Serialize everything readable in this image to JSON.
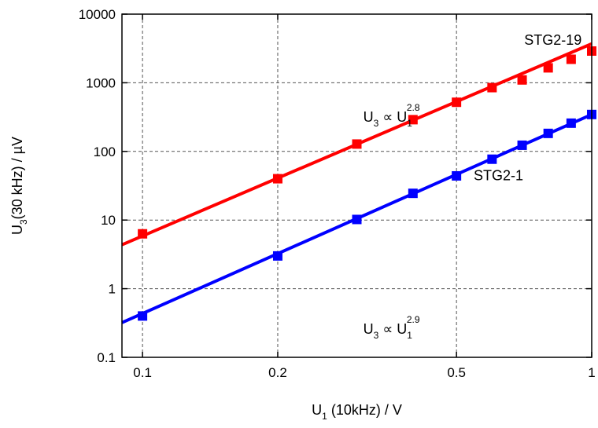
{
  "chart_data": {
    "type": "scatter",
    "x_scale": "log",
    "y_scale": "log",
    "xlim": [
      0.09,
      1.0
    ],
    "ylim": [
      0.1,
      10000
    ],
    "grid": true,
    "legend": "none",
    "x_ticks": [
      0.1,
      0.2,
      0.5,
      1
    ],
    "x_tick_labels": [
      "0.1",
      "0.2",
      "0.5",
      "1"
    ],
    "y_ticks": [
      0.1,
      1,
      10,
      100,
      1000,
      10000
    ],
    "y_tick_labels": [
      "0.1",
      "1",
      "10",
      "100",
      "1000",
      "10000"
    ],
    "xlabel": {
      "pre": "U",
      "sub": "1",
      "post": " (10kHz) / V"
    },
    "ylabel": {
      "pre": "U",
      "sub": "3",
      "post": "(30 kHz) / µV"
    },
    "series": [
      {
        "name": "STG2-19",
        "color": "#ff0000",
        "points": [
          [
            0.1,
            6.3
          ],
          [
            0.2,
            40
          ],
          [
            0.3,
            128
          ],
          [
            0.4,
            290
          ],
          [
            0.5,
            520
          ],
          [
            0.6,
            850
          ],
          [
            0.7,
            1100
          ],
          [
            0.8,
            1650
          ],
          [
            0.9,
            2200
          ],
          [
            1.0,
            2900
          ]
        ],
        "fit": {
          "x_range": [
            0.09,
            1.0
          ],
          "y_at_x1": 3700,
          "exponent": 2.8
        }
      },
      {
        "name": "STG2-1",
        "color": "#0000ff",
        "points": [
          [
            0.1,
            0.4
          ],
          [
            0.2,
            3.0
          ],
          [
            0.3,
            10.2
          ],
          [
            0.4,
            24.5
          ],
          [
            0.5,
            44
          ],
          [
            0.6,
            77
          ],
          [
            0.7,
            123
          ],
          [
            0.8,
            183
          ],
          [
            0.9,
            258
          ],
          [
            1.0,
            345
          ]
        ],
        "fit": {
          "x_range": [
            0.09,
            1.0
          ],
          "y_at_x1": 345,
          "exponent": 2.9
        }
      }
    ],
    "annotations": [
      {
        "id": "label-stg2-19",
        "text": "STG2-19",
        "x": 0.82,
        "y": 3600
      },
      {
        "id": "label-stg2-1",
        "text": "STG2-1",
        "x": 0.62,
        "y": 38
      },
      {
        "id": "rel-top",
        "lhs": "U",
        "lhs_sub": "3",
        "op": " ∝ ",
        "rhs": "U",
        "rhs_sub": "1",
        "rhs_sup": "2.8",
        "x": 0.31,
        "y": 270
      },
      {
        "id": "rel-bottom",
        "lhs": "U",
        "lhs_sub": "3",
        "op": " ∝ ",
        "rhs": "U",
        "rhs_sub": "1",
        "rhs_sup": "2.9",
        "x": 0.31,
        "y": 0.22
      }
    ]
  }
}
